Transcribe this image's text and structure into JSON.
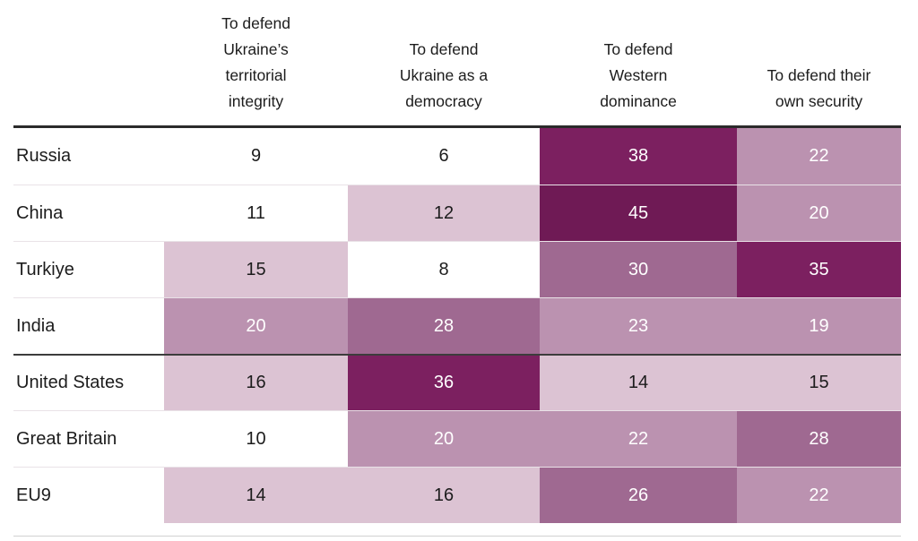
{
  "table": {
    "column_headers": [
      "To defend\nUkraine’s\nterritorial\nintegrity",
      "To defend\nUkraine as a\ndemocracy",
      "To defend\nWestern\ndominance",
      "To defend their\nown security"
    ]
  },
  "chart_data": {
    "type": "heatmap",
    "columns": [
      "To defend Ukraine’s territorial integrity",
      "To defend Ukraine as a democracy",
      "To defend Western dominance",
      "To defend their own security"
    ],
    "rows": [
      "Russia",
      "China",
      "Turkiye",
      "India",
      "United States",
      "Great Britain",
      "EU9"
    ],
    "values": [
      [
        9,
        6,
        38,
        22
      ],
      [
        11,
        12,
        45,
        20
      ],
      [
        15,
        8,
        30,
        35
      ],
      [
        20,
        28,
        23,
        19
      ],
      [
        16,
        36,
        14,
        15
      ],
      [
        10,
        20,
        22,
        28
      ],
      [
        14,
        16,
        26,
        22
      ]
    ],
    "row_groups": [
      [
        "Russia",
        "China",
        "Turkiye",
        "India"
      ],
      [
        "United States",
        "Great Britain",
        "EU9"
      ]
    ],
    "legend_position": "none",
    "grid": "off",
    "color_scale": [
      {
        "max": 11,
        "bg": "#ffffff",
        "fg": "#1c1c1c"
      },
      {
        "max": 17,
        "bg": "#dcc3d3",
        "fg": "#1c1c1c"
      },
      {
        "max": 24,
        "bg": "#bb92b0",
        "fg": "#ffffff"
      },
      {
        "max": 31,
        "bg": "#9f6991",
        "fg": "#ffffff"
      },
      {
        "max": 41,
        "bg": "#7c2060",
        "fg": "#ffffff"
      },
      {
        "max": 100,
        "bg": "#6f1a55",
        "fg": "#ffffff"
      }
    ]
  }
}
